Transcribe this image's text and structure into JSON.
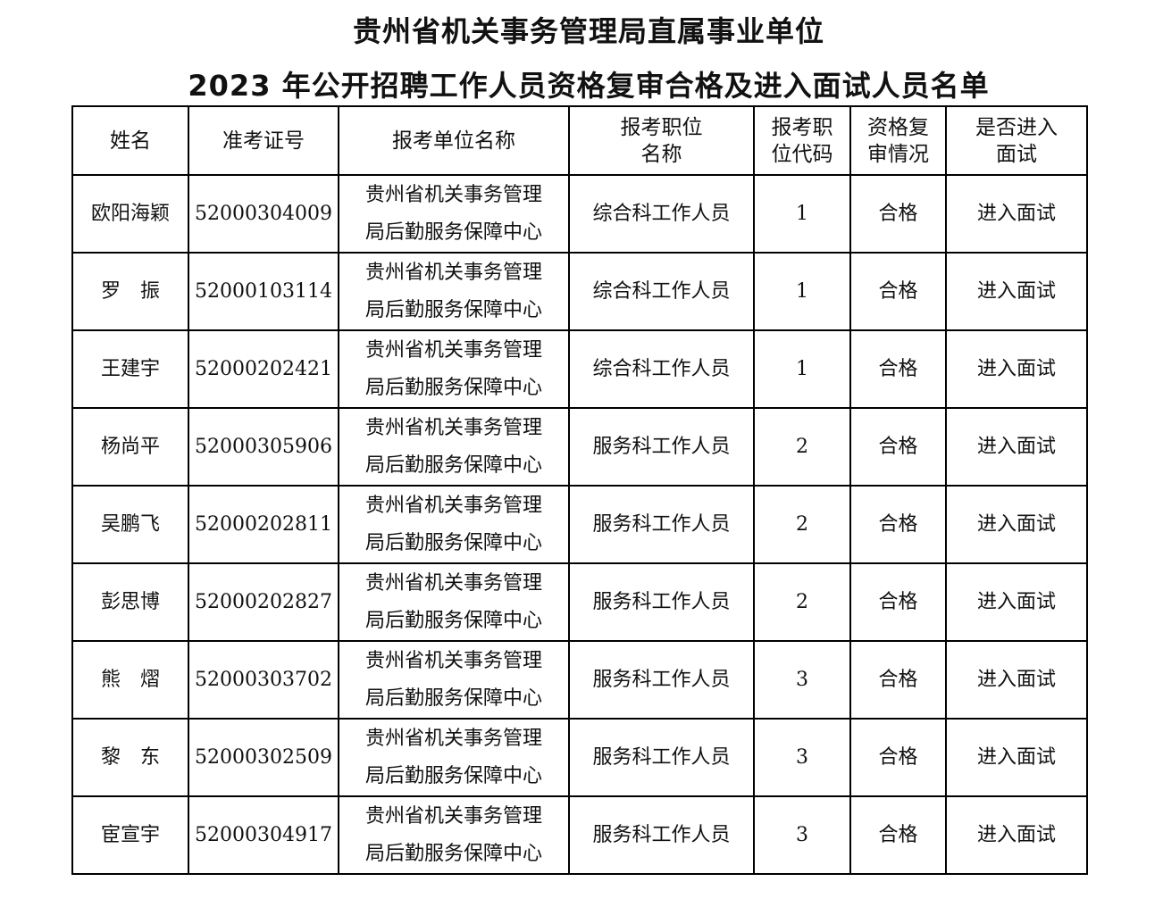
{
  "document": {
    "title_line1": "贵州省机关事务管理局直属事业单位",
    "title_line2": "2023 年公开招聘工作人员资格复审合格及进入面试人员名单"
  },
  "table": {
    "headers": [
      "姓名",
      "准考证号",
      "报考单位名称",
      "报考职位\n名称",
      "报考职\n位代码",
      "资格复\n审情况",
      "是否进入\n面试"
    ],
    "rows": [
      {
        "name": "欧阳海颖",
        "exam_no": "52000304009",
        "unit_line1": "贵州省机关事务管理",
        "unit_line2": "局后勤服务保障中心",
        "position": "综合科工作人员",
        "code": "1",
        "review": "合格",
        "interview": "进入面试"
      },
      {
        "name": "罗　振",
        "exam_no": "52000103114",
        "unit_line1": "贵州省机关事务管理",
        "unit_line2": "局后勤服务保障中心",
        "position": "综合科工作人员",
        "code": "1",
        "review": "合格",
        "interview": "进入面试"
      },
      {
        "name": "王建宇",
        "exam_no": "52000202421",
        "unit_line1": "贵州省机关事务管理",
        "unit_line2": "局后勤服务保障中心",
        "position": "综合科工作人员",
        "code": "1",
        "review": "合格",
        "interview": "进入面试"
      },
      {
        "name": "杨尚平",
        "exam_no": "52000305906",
        "unit_line1": "贵州省机关事务管理",
        "unit_line2": "局后勤服务保障中心",
        "position": "服务科工作人员",
        "code": "2",
        "review": "合格",
        "interview": "进入面试"
      },
      {
        "name": "吴鹏飞",
        "exam_no": "52000202811",
        "unit_line1": "贵州省机关事务管理",
        "unit_line2": "局后勤服务保障中心",
        "position": "服务科工作人员",
        "code": "2",
        "review": "合格",
        "interview": "进入面试"
      },
      {
        "name": "彭思博",
        "exam_no": "52000202827",
        "unit_line1": "贵州省机关事务管理",
        "unit_line2": "局后勤服务保障中心",
        "position": "服务科工作人员",
        "code": "2",
        "review": "合格",
        "interview": "进入面试"
      },
      {
        "name": "熊　熠",
        "exam_no": "52000303702",
        "unit_line1": "贵州省机关事务管理",
        "unit_line2": "局后勤服务保障中心",
        "position": "服务科工作人员",
        "code": "3",
        "review": "合格",
        "interview": "进入面试"
      },
      {
        "name": "黎　东",
        "exam_no": "52000302509",
        "unit_line1": "贵州省机关事务管理",
        "unit_line2": "局后勤服务保障中心",
        "position": "服务科工作人员",
        "code": "3",
        "review": "合格",
        "interview": "进入面试"
      },
      {
        "name": "宦宣宇",
        "exam_no": "52000304917",
        "unit_line1": "贵州省机关事务管理",
        "unit_line2": "局后勤服务保障中心",
        "position": "服务科工作人员",
        "code": "3",
        "review": "合格",
        "interview": "进入面试"
      }
    ]
  }
}
